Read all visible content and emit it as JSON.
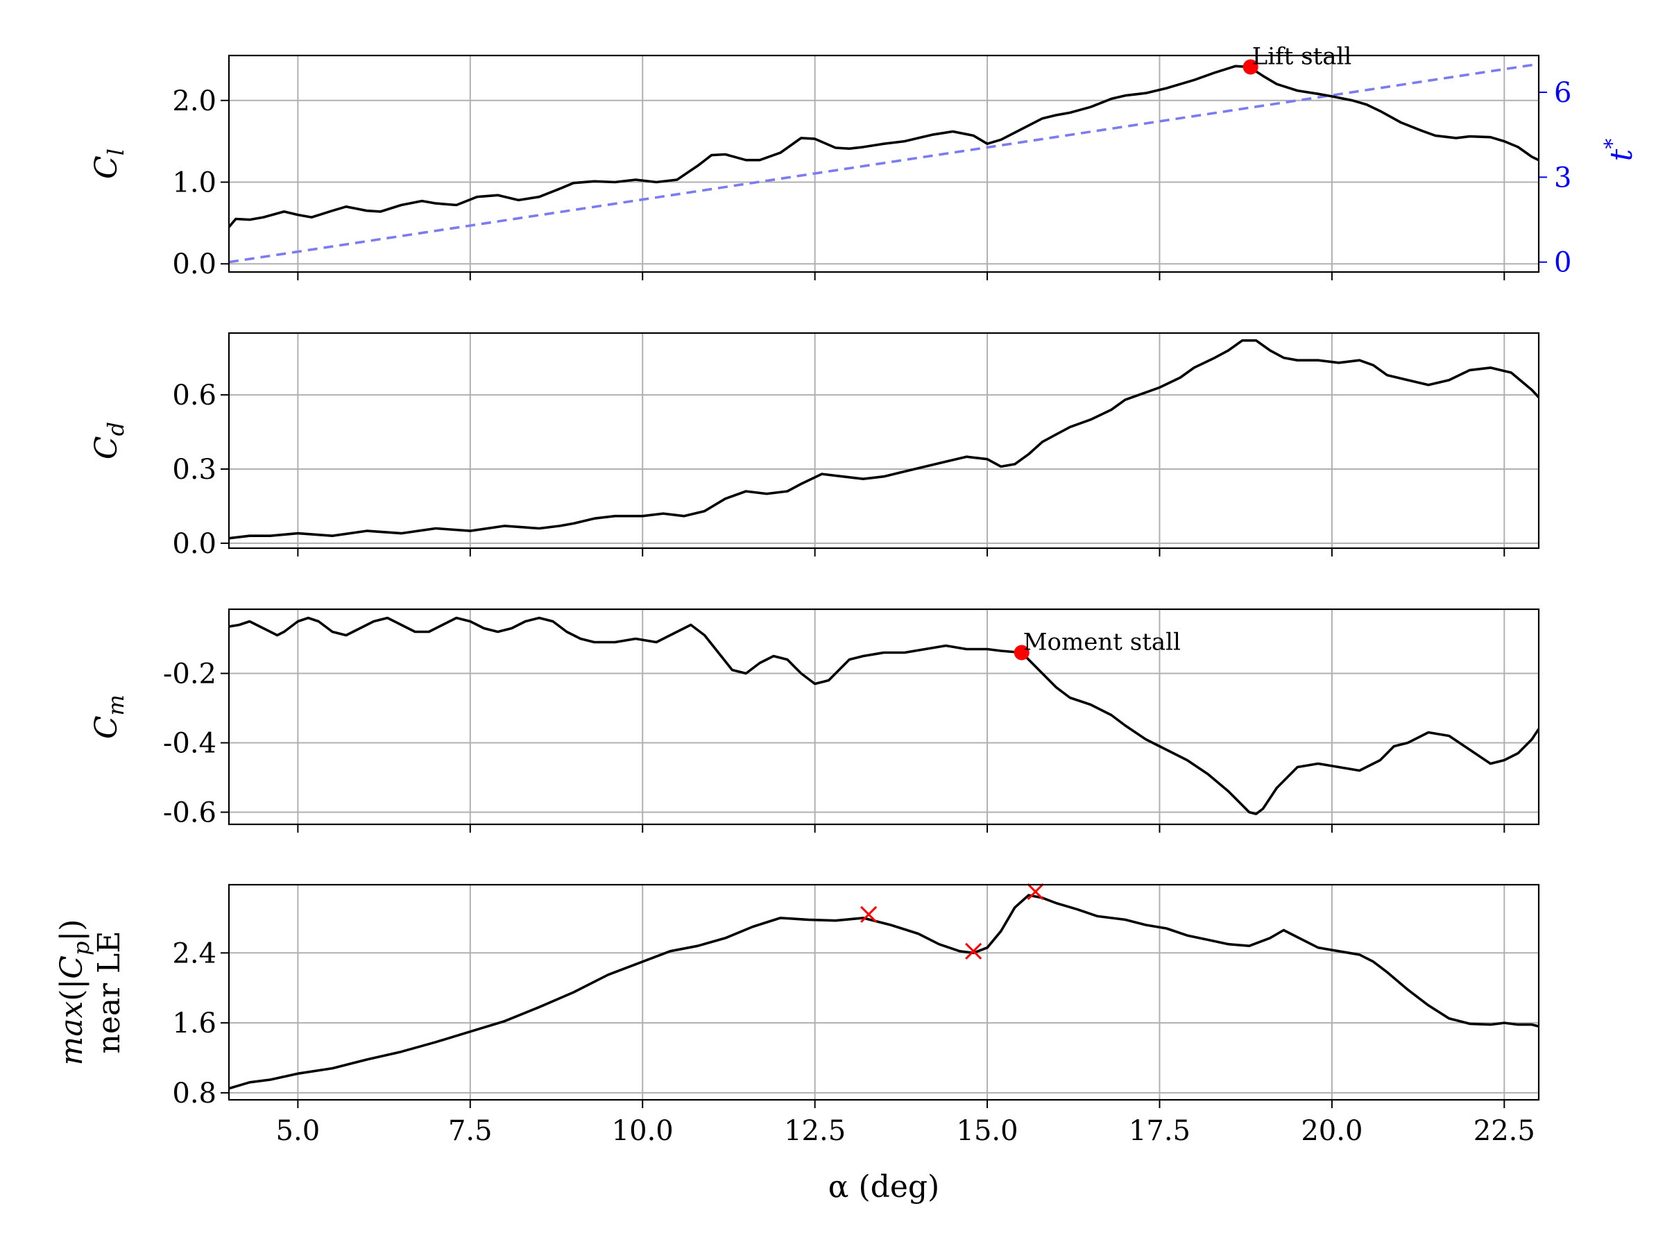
{
  "chart_data": {
    "type": "line",
    "shared_x": {
      "label": "α (deg)",
      "range": [
        4.0,
        23.0
      ],
      "ticks": [
        "5.0",
        "7.5",
        "10.0",
        "12.5",
        "15.0",
        "17.5",
        "20.0",
        "22.5"
      ]
    },
    "panels": [
      {
        "id": "cl",
        "ylabel": "C_l",
        "ylim": [
          -0.1,
          2.55
        ],
        "yticks": [
          "0.0",
          "1.0",
          "2.0"
        ],
        "grid": true,
        "x": [
          4.0,
          4.1,
          4.3,
          4.5,
          4.8,
          5.0,
          5.2,
          5.5,
          5.7,
          6.0,
          6.2,
          6.5,
          6.8,
          7.0,
          7.3,
          7.6,
          7.9,
          8.2,
          8.5,
          8.8,
          9.0,
          9.3,
          9.6,
          9.9,
          10.2,
          10.5,
          10.8,
          11.0,
          11.2,
          11.5,
          11.7,
          12.0,
          12.3,
          12.5,
          12.8,
          13.0,
          13.2,
          13.5,
          13.8,
          14.0,
          14.2,
          14.5,
          14.8,
          15.0,
          15.2,
          15.5,
          15.8,
          16.0,
          16.2,
          16.5,
          16.8,
          17.0,
          17.3,
          17.6,
          18.0,
          18.3,
          18.6,
          18.8,
          19.0,
          19.2,
          19.5,
          19.8,
          20.0,
          20.3,
          20.5,
          20.7,
          21.0,
          21.3,
          21.5,
          21.8,
          22.0,
          22.3,
          22.5,
          22.7,
          22.9,
          23.0
        ],
        "y": [
          0.45,
          0.55,
          0.54,
          0.57,
          0.64,
          0.6,
          0.57,
          0.65,
          0.7,
          0.65,
          0.64,
          0.72,
          0.77,
          0.74,
          0.72,
          0.82,
          0.84,
          0.78,
          0.82,
          0.92,
          0.99,
          1.01,
          1.0,
          1.03,
          1.0,
          1.03,
          1.2,
          1.33,
          1.34,
          1.27,
          1.27,
          1.36,
          1.54,
          1.53,
          1.42,
          1.41,
          1.43,
          1.47,
          1.5,
          1.54,
          1.58,
          1.62,
          1.57,
          1.47,
          1.52,
          1.65,
          1.78,
          1.82,
          1.85,
          1.92,
          2.02,
          2.06,
          2.09,
          2.15,
          2.25,
          2.34,
          2.42,
          2.41,
          2.3,
          2.2,
          2.12,
          2.08,
          2.05,
          2.0,
          1.95,
          1.87,
          1.73,
          1.63,
          1.57,
          1.54,
          1.56,
          1.55,
          1.5,
          1.43,
          1.31,
          1.27
        ],
        "secondary": {
          "ylabel": "t*",
          "ylim": [
            -0.35,
            7.3
          ],
          "yticks": [
            "0",
            "3",
            "6"
          ],
          "color": "#0000ff",
          "line_color": "#7b7bf2",
          "style": "dashed",
          "x": [
            4.0,
            23.0
          ],
          "y": [
            0.0,
            7.0
          ]
        },
        "markers": [
          {
            "x": 18.82,
            "y": 2.41,
            "symbol": "dot",
            "color": "#ff0000",
            "label": "Lift stall"
          }
        ]
      },
      {
        "id": "cd",
        "ylabel": "C_d",
        "ylim": [
          -0.02,
          0.85
        ],
        "yticks": [
          "0.0",
          "0.3",
          "0.6"
        ],
        "grid": true,
        "x": [
          4.0,
          4.3,
          4.6,
          5.0,
          5.5,
          6.0,
          6.5,
          7.0,
          7.5,
          8.0,
          8.5,
          8.8,
          9.0,
          9.3,
          9.6,
          10.0,
          10.3,
          10.6,
          10.9,
          11.2,
          11.5,
          11.8,
          12.1,
          12.3,
          12.6,
          12.9,
          13.2,
          13.5,
          13.8,
          14.1,
          14.4,
          14.7,
          15.0,
          15.2,
          15.4,
          15.6,
          15.8,
          16.0,
          16.2,
          16.5,
          16.8,
          17.0,
          17.2,
          17.5,
          17.8,
          18.0,
          18.3,
          18.5,
          18.7,
          18.9,
          19.1,
          19.3,
          19.5,
          19.8,
          20.1,
          20.4,
          20.6,
          20.8,
          21.1,
          21.4,
          21.7,
          22.0,
          22.3,
          22.6,
          22.9,
          23.0
        ],
        "y": [
          0.02,
          0.03,
          0.03,
          0.04,
          0.03,
          0.05,
          0.04,
          0.06,
          0.05,
          0.07,
          0.06,
          0.07,
          0.08,
          0.1,
          0.11,
          0.11,
          0.12,
          0.11,
          0.13,
          0.18,
          0.21,
          0.2,
          0.21,
          0.24,
          0.28,
          0.27,
          0.26,
          0.27,
          0.29,
          0.31,
          0.33,
          0.35,
          0.34,
          0.31,
          0.32,
          0.36,
          0.41,
          0.44,
          0.47,
          0.5,
          0.54,
          0.58,
          0.6,
          0.63,
          0.67,
          0.71,
          0.75,
          0.78,
          0.82,
          0.82,
          0.78,
          0.75,
          0.74,
          0.74,
          0.73,
          0.74,
          0.72,
          0.68,
          0.66,
          0.64,
          0.66,
          0.7,
          0.71,
          0.69,
          0.62,
          0.59
        ],
        "markers": []
      },
      {
        "id": "cm",
        "ylabel": "C_m",
        "ylim": [
          -0.635,
          -0.015
        ],
        "yticks": [
          "-0.2",
          "-0.4",
          "-0.6"
        ],
        "grid": true,
        "x": [
          4.0,
          4.15,
          4.3,
          4.5,
          4.7,
          4.8,
          5.0,
          5.15,
          5.3,
          5.5,
          5.7,
          5.9,
          6.1,
          6.3,
          6.5,
          6.7,
          6.9,
          7.1,
          7.3,
          7.5,
          7.7,
          7.9,
          8.1,
          8.3,
          8.5,
          8.7,
          8.9,
          9.1,
          9.3,
          9.6,
          9.9,
          10.2,
          10.5,
          10.7,
          10.9,
          11.1,
          11.3,
          11.5,
          11.7,
          11.9,
          12.1,
          12.3,
          12.5,
          12.7,
          12.85,
          13.0,
          13.2,
          13.5,
          13.8,
          14.1,
          14.4,
          14.7,
          15.0,
          15.2,
          15.5,
          15.8,
          16.0,
          16.2,
          16.5,
          16.8,
          17.0,
          17.3,
          17.6,
          17.9,
          18.2,
          18.5,
          18.8,
          18.9,
          19.0,
          19.2,
          19.5,
          19.8,
          20.1,
          20.4,
          20.7,
          20.9,
          21.1,
          21.4,
          21.7,
          22.0,
          22.3,
          22.5,
          22.7,
          22.9,
          23.0
        ],
        "y": [
          -0.065,
          -0.06,
          -0.05,
          -0.07,
          -0.09,
          -0.08,
          -0.05,
          -0.04,
          -0.05,
          -0.08,
          -0.09,
          -0.07,
          -0.05,
          -0.04,
          -0.06,
          -0.08,
          -0.08,
          -0.06,
          -0.04,
          -0.05,
          -0.07,
          -0.08,
          -0.07,
          -0.05,
          -0.04,
          -0.05,
          -0.08,
          -0.1,
          -0.11,
          -0.11,
          -0.1,
          -0.11,
          -0.08,
          -0.06,
          -0.09,
          -0.14,
          -0.19,
          -0.2,
          -0.17,
          -0.15,
          -0.16,
          -0.2,
          -0.23,
          -0.22,
          -0.19,
          -0.16,
          -0.15,
          -0.14,
          -0.14,
          -0.13,
          -0.12,
          -0.13,
          -0.13,
          -0.135,
          -0.14,
          -0.2,
          -0.24,
          -0.27,
          -0.29,
          -0.32,
          -0.35,
          -0.39,
          -0.42,
          -0.45,
          -0.49,
          -0.54,
          -0.6,
          -0.605,
          -0.59,
          -0.53,
          -0.47,
          -0.46,
          -0.47,
          -0.48,
          -0.45,
          -0.41,
          -0.4,
          -0.37,
          -0.38,
          -0.42,
          -0.46,
          -0.45,
          -0.43,
          -0.39,
          -0.36
        ],
        "markers": [
          {
            "x": 15.5,
            "y": -0.14,
            "symbol": "dot",
            "color": "#ff0000",
            "label": "Moment stall"
          }
        ]
      },
      {
        "id": "cp",
        "ylabel_lines": [
          "max(|C_p|)",
          "near LE"
        ],
        "ylim": [
          0.72,
          3.18
        ],
        "yticks": [
          "0.8",
          "1.6",
          "2.4"
        ],
        "grid": true,
        "x": [
          4.0,
          4.3,
          4.6,
          5.0,
          5.5,
          6.0,
          6.5,
          7.0,
          7.5,
          8.0,
          8.5,
          9.0,
          9.5,
          10.0,
          10.4,
          10.8,
          11.2,
          11.6,
          12.0,
          12.4,
          12.8,
          13.2,
          13.6,
          14.0,
          14.3,
          14.6,
          14.8,
          15.0,
          15.2,
          15.4,
          15.6,
          15.8,
          16.0,
          16.3,
          16.6,
          17.0,
          17.3,
          17.6,
          17.9,
          18.2,
          18.5,
          18.8,
          19.1,
          19.3,
          19.5,
          19.8,
          20.1,
          20.4,
          20.6,
          20.8,
          21.1,
          21.4,
          21.7,
          22.0,
          22.3,
          22.5,
          22.7,
          22.9,
          23.0
        ],
        "y": [
          0.85,
          0.92,
          0.95,
          1.02,
          1.08,
          1.18,
          1.27,
          1.38,
          1.5,
          1.62,
          1.78,
          1.95,
          2.15,
          2.3,
          2.42,
          2.48,
          2.57,
          2.7,
          2.8,
          2.78,
          2.77,
          2.8,
          2.72,
          2.62,
          2.5,
          2.42,
          2.4,
          2.46,
          2.65,
          2.92,
          3.06,
          3.03,
          2.97,
          2.9,
          2.82,
          2.78,
          2.72,
          2.68,
          2.6,
          2.55,
          2.5,
          2.48,
          2.57,
          2.66,
          2.58,
          2.46,
          2.42,
          2.38,
          2.3,
          2.18,
          1.98,
          1.8,
          1.65,
          1.59,
          1.58,
          1.6,
          1.58,
          1.58,
          1.56
        ],
        "markers": [
          {
            "x": 13.28,
            "y": 2.84,
            "symbol": "x",
            "color": "#ff0000"
          },
          {
            "x": 14.8,
            "y": 2.42,
            "symbol": "x",
            "color": "#ff0000"
          },
          {
            "x": 15.7,
            "y": 3.1,
            "symbol": "x",
            "color": "#ff0000"
          }
        ]
      }
    ]
  }
}
